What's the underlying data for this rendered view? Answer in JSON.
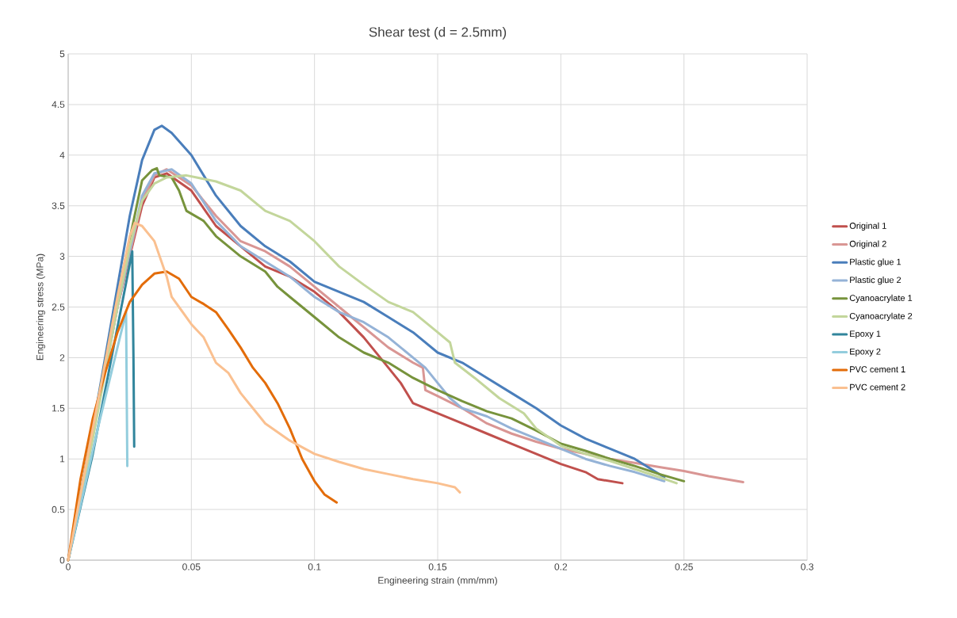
{
  "chart_data": {
    "type": "line",
    "title": "Shear test (d = 2.5mm)",
    "xlabel": "Engineering strain (mm/mm)",
    "ylabel": "Engineering stress (MPa)",
    "xlim": [
      0,
      0.3
    ],
    "ylim": [
      0,
      5
    ],
    "xticks": [
      0,
      0.05,
      0.1,
      0.15,
      0.2,
      0.25,
      0.3
    ],
    "yticks": [
      0,
      0.5,
      1,
      1.5,
      2,
      2.5,
      3,
      3.5,
      4,
      4.5,
      5
    ],
    "grid": true,
    "legend": "right",
    "marker": "none",
    "line_style": "solid",
    "series": [
      {
        "name": "Original 1",
        "color": "#c0504d",
        "x": [
          0,
          0.01,
          0.02,
          0.03,
          0.035,
          0.04,
          0.05,
          0.06,
          0.07,
          0.08,
          0.09,
          0.1,
          0.11,
          0.12,
          0.13,
          0.135,
          0.14,
          0.15,
          0.16,
          0.17,
          0.18,
          0.19,
          0.2,
          0.21,
          0.215,
          0.225
        ],
        "values": [
          0,
          1.25,
          2.5,
          3.5,
          3.78,
          3.82,
          3.65,
          3.3,
          3.1,
          2.9,
          2.8,
          2.65,
          2.45,
          2.2,
          1.9,
          1.75,
          1.55,
          1.45,
          1.35,
          1.25,
          1.15,
          1.05,
          0.95,
          0.87,
          0.8,
          0.76
        ]
      },
      {
        "name": "Original 2",
        "color": "#d99694",
        "x": [
          0,
          0.01,
          0.02,
          0.03,
          0.035,
          0.04,
          0.05,
          0.06,
          0.07,
          0.08,
          0.09,
          0.1,
          0.11,
          0.12,
          0.13,
          0.14,
          0.144,
          0.145,
          0.15,
          0.16,
          0.17,
          0.18,
          0.19,
          0.2,
          0.21,
          0.22,
          0.23,
          0.24,
          0.25,
          0.26,
          0.274
        ],
        "values": [
          0,
          1.25,
          2.5,
          3.55,
          3.8,
          3.86,
          3.7,
          3.4,
          3.15,
          3.05,
          2.9,
          2.7,
          2.5,
          2.3,
          2.1,
          1.95,
          1.9,
          1.68,
          1.62,
          1.5,
          1.35,
          1.25,
          1.17,
          1.1,
          1.05,
          1.0,
          0.96,
          0.92,
          0.88,
          0.83,
          0.77
        ]
      },
      {
        "name": "Plastic glue 1",
        "color": "#4a7ebb",
        "x": [
          0,
          0.01,
          0.02,
          0.025,
          0.03,
          0.035,
          0.038,
          0.042,
          0.05,
          0.055,
          0.06,
          0.07,
          0.08,
          0.09,
          0.1,
          0.11,
          0.12,
          0.13,
          0.14,
          0.15,
          0.16,
          0.17,
          0.18,
          0.19,
          0.2,
          0.21,
          0.22,
          0.23,
          0.242
        ],
        "values": [
          0,
          1.3,
          2.7,
          3.4,
          3.95,
          4.25,
          4.29,
          4.22,
          4.0,
          3.8,
          3.6,
          3.3,
          3.1,
          2.95,
          2.75,
          2.65,
          2.55,
          2.4,
          2.25,
          2.05,
          1.95,
          1.8,
          1.65,
          1.5,
          1.33,
          1.2,
          1.1,
          1.0,
          0.82
        ]
      },
      {
        "name": "Plastic glue 2",
        "color": "#95b3d7",
        "x": [
          0,
          0.01,
          0.02,
          0.03,
          0.035,
          0.042,
          0.05,
          0.06,
          0.07,
          0.08,
          0.09,
          0.1,
          0.11,
          0.12,
          0.13,
          0.14,
          0.145,
          0.15,
          0.155,
          0.16,
          0.17,
          0.18,
          0.19,
          0.2,
          0.21,
          0.22,
          0.23,
          0.242
        ],
        "values": [
          0,
          1.25,
          2.5,
          3.6,
          3.82,
          3.86,
          3.72,
          3.35,
          3.1,
          2.95,
          2.8,
          2.6,
          2.45,
          2.35,
          2.2,
          2.0,
          1.9,
          1.75,
          1.6,
          1.5,
          1.42,
          1.3,
          1.2,
          1.1,
          1.0,
          0.93,
          0.87,
          0.78
        ]
      },
      {
        "name": "Cyanoacrylate 1",
        "color": "#77933c",
        "x": [
          0,
          0.01,
          0.02,
          0.03,
          0.034,
          0.036,
          0.037,
          0.042,
          0.045,
          0.048,
          0.055,
          0.06,
          0.065,
          0.07,
          0.08,
          0.085,
          0.09,
          0.1,
          0.11,
          0.12,
          0.13,
          0.14,
          0.15,
          0.16,
          0.17,
          0.18,
          0.19,
          0.2,
          0.21,
          0.22,
          0.23,
          0.24,
          0.25
        ],
        "values": [
          0,
          1.3,
          2.6,
          3.75,
          3.85,
          3.87,
          3.8,
          3.78,
          3.65,
          3.45,
          3.35,
          3.2,
          3.1,
          3.0,
          2.85,
          2.7,
          2.6,
          2.4,
          2.2,
          2.05,
          1.95,
          1.8,
          1.68,
          1.57,
          1.47,
          1.4,
          1.28,
          1.15,
          1.08,
          1.0,
          0.93,
          0.85,
          0.78
        ]
      },
      {
        "name": "Cyanoacrylate 2",
        "color": "#c3d69b",
        "x": [
          0,
          0.01,
          0.02,
          0.025,
          0.03,
          0.035,
          0.04,
          0.048,
          0.06,
          0.07,
          0.08,
          0.09,
          0.1,
          0.11,
          0.12,
          0.13,
          0.14,
          0.15,
          0.155,
          0.157,
          0.165,
          0.175,
          0.185,
          0.19,
          0.2,
          0.21,
          0.22,
          0.23,
          0.24,
          0.247
        ],
        "values": [
          0,
          1.2,
          2.5,
          3.1,
          3.55,
          3.72,
          3.78,
          3.8,
          3.74,
          3.65,
          3.45,
          3.35,
          3.15,
          2.9,
          2.72,
          2.55,
          2.45,
          2.25,
          2.15,
          1.95,
          1.8,
          1.6,
          1.45,
          1.3,
          1.13,
          1.05,
          0.98,
          0.9,
          0.82,
          0.76
        ]
      },
      {
        "name": "Epoxy 1",
        "color": "#31859c",
        "x": [
          0,
          0.01,
          0.02,
          0.026,
          0.0265,
          0.0268
        ],
        "values": [
          0,
          1.05,
          2.3,
          3.05,
          2.0,
          1.12
        ]
      },
      {
        "name": "Epoxy 2",
        "color": "#93cddd",
        "x": [
          0,
          0.012,
          0.0235,
          0.024
        ],
        "values": [
          0,
          1.3,
          2.45,
          0.93
        ]
      },
      {
        "name": "PVC cement 1",
        "color": "#e36c09",
        "x": [
          0,
          0.005,
          0.01,
          0.015,
          0.02,
          0.025,
          0.03,
          0.035,
          0.04,
          0.045,
          0.05,
          0.055,
          0.06,
          0.065,
          0.07,
          0.075,
          0.08,
          0.085,
          0.09,
          0.095,
          0.1,
          0.104,
          0.109
        ],
        "values": [
          0,
          0.8,
          1.4,
          1.85,
          2.25,
          2.55,
          2.72,
          2.83,
          2.85,
          2.78,
          2.6,
          2.53,
          2.45,
          2.28,
          2.1,
          1.9,
          1.75,
          1.55,
          1.3,
          1.0,
          0.78,
          0.65,
          0.57
        ]
      },
      {
        "name": "PVC cement 2",
        "color": "#fac090",
        "x": [
          0,
          0.01,
          0.02,
          0.025,
          0.027,
          0.03,
          0.035,
          0.04,
          0.042,
          0.045,
          0.05,
          0.055,
          0.06,
          0.065,
          0.07,
          0.075,
          0.08,
          0.09,
          0.1,
          0.11,
          0.12,
          0.13,
          0.14,
          0.15,
          0.157,
          0.159
        ],
        "values": [
          0,
          1.3,
          2.6,
          3.2,
          3.33,
          3.3,
          3.15,
          2.8,
          2.6,
          2.5,
          2.33,
          2.2,
          1.95,
          1.85,
          1.65,
          1.5,
          1.35,
          1.18,
          1.05,
          0.97,
          0.9,
          0.85,
          0.8,
          0.76,
          0.72,
          0.67
        ]
      }
    ]
  }
}
